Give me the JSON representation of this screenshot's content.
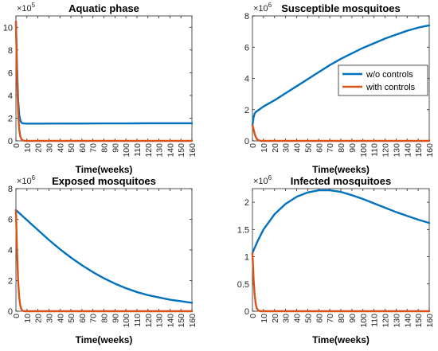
{
  "chart_data": [
    {
      "type": "line",
      "title": "Aquatic phase",
      "xlabel": "Time(weeks)",
      "ylabel": "",
      "multiplier": "×10",
      "exponent": "5",
      "xlim": [
        0,
        160
      ],
      "ylim": [
        0,
        11
      ],
      "xticks": [
        "0",
        "10",
        "20",
        "30",
        "40",
        "50",
        "60",
        "70",
        "80",
        "90",
        "100",
        "110",
        "120",
        "130",
        "140",
        "150",
        "160"
      ],
      "yticks": [
        "0",
        "2",
        "4",
        "6",
        "8",
        "10"
      ],
      "series": [
        {
          "name": "w/o controls",
          "color": "#0072BD",
          "x": [
            0,
            1,
            2,
            3,
            4,
            5,
            6,
            8,
            10,
            20,
            40,
            60,
            80,
            100,
            120,
            140,
            160
          ],
          "y": [
            10.5,
            6.5,
            3.6,
            2.3,
            1.8,
            1.6,
            1.55,
            1.53,
            1.52,
            1.52,
            1.53,
            1.53,
            1.54,
            1.54,
            1.55,
            1.55,
            1.55
          ]
        },
        {
          "name": "with controls",
          "color": "#D95319",
          "x": [
            0,
            1,
            2,
            3,
            4,
            5,
            6,
            7,
            8,
            10,
            15,
            20,
            40,
            80,
            120,
            160
          ],
          "y": [
            10.5,
            5.6,
            2.6,
            1.0,
            0.4,
            0.15,
            0.06,
            0.02,
            0.01,
            0,
            0,
            0,
            0,
            0,
            0,
            0
          ]
        }
      ]
    },
    {
      "type": "line",
      "title": "Susceptible mosquitoes",
      "xlabel": "Time(weeks)",
      "ylabel": "",
      "multiplier": "×10",
      "exponent": "6",
      "xlim": [
        0,
        160
      ],
      "ylim": [
        0,
        8
      ],
      "xticks": [
        "0",
        "10",
        "20",
        "30",
        "40",
        "50",
        "60",
        "70",
        "80",
        "90",
        "100",
        "110",
        "120",
        "130",
        "140",
        "150",
        "160"
      ],
      "yticks": [
        "0",
        "2",
        "4",
        "6",
        "8"
      ],
      "legend": {
        "position": "right",
        "entries": [
          "w/o controls",
          "with controls"
        ]
      },
      "series": [
        {
          "name": "w/o controls",
          "color": "#0072BD",
          "x": [
            0,
            1,
            2,
            3,
            5,
            10,
            20,
            30,
            40,
            50,
            60,
            70,
            80,
            90,
            100,
            110,
            120,
            130,
            140,
            150,
            160
          ],
          "y": [
            1.0,
            1.5,
            1.75,
            1.85,
            1.95,
            2.2,
            2.6,
            3.05,
            3.5,
            3.95,
            4.4,
            4.85,
            5.25,
            5.6,
            5.95,
            6.25,
            6.55,
            6.8,
            7.05,
            7.25,
            7.4
          ]
        },
        {
          "name": "with controls",
          "color": "#D95319",
          "x": [
            0,
            1,
            2,
            3,
            4,
            5,
            6,
            7,
            8,
            10,
            20,
            40,
            80,
            120,
            160
          ],
          "y": [
            1.0,
            0.75,
            0.45,
            0.25,
            0.12,
            0.06,
            0.03,
            0.01,
            0,
            0,
            0,
            0,
            0,
            0,
            0
          ]
        }
      ]
    },
    {
      "type": "line",
      "title": "Exposed mosquitoes",
      "xlabel": "Time(weeks)",
      "ylabel": "",
      "multiplier": "×10",
      "exponent": "6",
      "xlim": [
        0,
        160
      ],
      "ylim": [
        0,
        8
      ],
      "xticks": [
        "0",
        "10",
        "20",
        "30",
        "40",
        "50",
        "60",
        "70",
        "80",
        "90",
        "100",
        "110",
        "120",
        "130",
        "140",
        "150",
        "160"
      ],
      "yticks": [
        "0",
        "2",
        "4",
        "6",
        "8"
      ],
      "series": [
        {
          "name": "w/o controls",
          "color": "#0072BD",
          "x": [
            0,
            10,
            20,
            30,
            40,
            50,
            60,
            70,
            80,
            90,
            100,
            110,
            120,
            130,
            140,
            150,
            160
          ],
          "y": [
            6.6,
            5.95,
            5.3,
            4.65,
            4.05,
            3.5,
            3.0,
            2.55,
            2.15,
            1.8,
            1.5,
            1.25,
            1.05,
            0.9,
            0.75,
            0.65,
            0.55
          ]
        },
        {
          "name": "with controls",
          "color": "#D95319",
          "x": [
            0,
            1,
            2,
            3,
            4,
            5,
            6,
            7,
            8,
            10,
            20,
            40,
            80,
            120,
            160
          ],
          "y": [
            6.6,
            4.0,
            2.0,
            0.9,
            0.35,
            0.12,
            0.04,
            0.01,
            0,
            0,
            0,
            0,
            0,
            0,
            0
          ]
        }
      ]
    },
    {
      "type": "line",
      "title": "Infected mosquitoes",
      "xlabel": "Time(weeks)",
      "ylabel": "",
      "multiplier": "×10",
      "exponent": "6",
      "xlim": [
        0,
        160
      ],
      "ylim": [
        0,
        2.25
      ],
      "xticks": [
        "0",
        "10",
        "20",
        "30",
        "40",
        "50",
        "60",
        "70",
        "80",
        "90",
        "100",
        "110",
        "120",
        "130",
        "140",
        "150",
        "160"
      ],
      "yticks": [
        "0",
        "0.5",
        "1",
        "1.5",
        "2"
      ],
      "series": [
        {
          "name": "w/o controls",
          "color": "#0072BD",
          "x": [
            0,
            5,
            10,
            20,
            30,
            40,
            50,
            60,
            70,
            80,
            90,
            100,
            110,
            120,
            130,
            140,
            150,
            160
          ],
          "y": [
            1.07,
            1.3,
            1.5,
            1.78,
            1.97,
            2.1,
            2.18,
            2.22,
            2.22,
            2.19,
            2.13,
            2.06,
            1.98,
            1.9,
            1.82,
            1.75,
            1.68,
            1.62
          ]
        },
        {
          "name": "with controls",
          "color": "#D95319",
          "x": [
            0,
            1,
            2,
            3,
            4,
            5,
            6,
            7,
            8,
            10,
            20,
            40,
            80,
            120,
            160
          ],
          "y": [
            1.07,
            0.6,
            0.3,
            0.13,
            0.05,
            0.02,
            0.01,
            0,
            0,
            0,
            0,
            0,
            0,
            0,
            0
          ]
        }
      ]
    }
  ]
}
